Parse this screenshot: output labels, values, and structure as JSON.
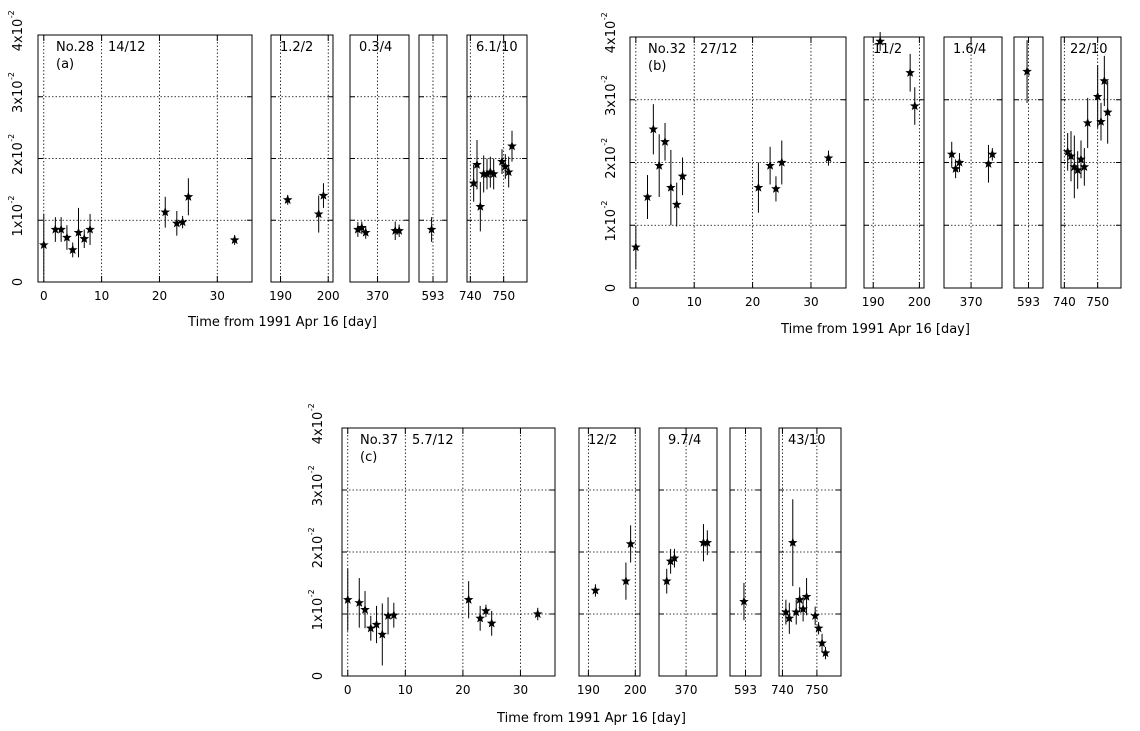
{
  "chart_data": [
    {
      "type": "scatter",
      "panel": "(a)",
      "source": "No.28",
      "xlabel": "Time from 1991 Apr 16 [day]",
      "ylim": [
        0,
        0.04
      ],
      "yticks": [
        "0",
        "1x10",
        "2x10",
        "3x10",
        "4x10"
      ],
      "ytick_exponent": "-2",
      "segments": [
        {
          "label": "14/12",
          "xlim": [
            -1,
            36
          ],
          "xticks": [
            "0",
            "10",
            "20",
            "30"
          ],
          "xtick_values": [
            0,
            10,
            20,
            30
          ],
          "points": [
            {
              "x": 0,
              "y": 0.006,
              "err": 0.005
            },
            {
              "x": 2,
              "y": 0.0085,
              "err": 0.002
            },
            {
              "x": 3,
              "y": 0.0085,
              "err": 0.002
            },
            {
              "x": 4,
              "y": 0.0072,
              "err": 0.002
            },
            {
              "x": 5,
              "y": 0.0052,
              "err": 0.0012
            },
            {
              "x": 6,
              "y": 0.008,
              "err": 0.004
            },
            {
              "x": 7,
              "y": 0.007,
              "err": 0.0015
            },
            {
              "x": 8,
              "y": 0.0085,
              "err": 0.0025
            },
            {
              "x": 21,
              "y": 0.0113,
              "err": 0.0025
            },
            {
              "x": 23,
              "y": 0.0095,
              "err": 0.002
            },
            {
              "x": 24,
              "y": 0.0097,
              "err": 0.001
            },
            {
              "x": 25,
              "y": 0.0138,
              "err": 0.003
            },
            {
              "x": 33,
              "y": 0.0068,
              "err": 0.0008
            }
          ]
        },
        {
          "label": "1.2/2",
          "xlim": [
            188,
            201
          ],
          "xticks": [
            "190",
            "200"
          ],
          "xtick_values": [
            190,
            200
          ],
          "points": [
            {
              "x": 191.5,
              "y": 0.0133,
              "err": 0.0008
            },
            {
              "x": 198,
              "y": 0.011,
              "err": 0.003
            },
            {
              "x": 199,
              "y": 0.014,
              "err": 0.002
            }
          ]
        },
        {
          "label": "0.3/4",
          "xlim": [
            363,
            378
          ],
          "xticks": [
            "370"
          ],
          "xtick_values": [
            370
          ],
          "points": [
            {
              "x": 365,
              "y": 0.0085,
              "err": 0.0012
            },
            {
              "x": 366,
              "y": 0.0088,
              "err": 0.001
            },
            {
              "x": 367,
              "y": 0.008,
              "err": 0.001
            },
            {
              "x": 374.5,
              "y": 0.0083,
              "err": 0.0015
            },
            {
              "x": 375.5,
              "y": 0.0083,
              "err": 0.001
            }
          ]
        },
        {
          "label": "",
          "xlim": [
            591,
            595
          ],
          "xticks": [
            "593"
          ],
          "xtick_values": [
            593
          ],
          "points": [
            {
              "x": 592.8,
              "y": 0.0085,
              "err": 0.002
            }
          ]
        },
        {
          "label": "6.1/10",
          "xlim": [
            739,
            757
          ],
          "xticks": [
            "740",
            "750"
          ],
          "xtick_values": [
            740,
            750
          ],
          "points": [
            {
              "x": 741,
              "y": 0.016,
              "err": 0.003
            },
            {
              "x": 742,
              "y": 0.019,
              "err": 0.004
            },
            {
              "x": 743,
              "y": 0.0122,
              "err": 0.004
            },
            {
              "x": 744,
              "y": 0.0175,
              "err": 0.003
            },
            {
              "x": 745,
              "y": 0.0175,
              "err": 0.0025
            },
            {
              "x": 746,
              "y": 0.0178,
              "err": 0.0025
            },
            {
              "x": 747,
              "y": 0.0175,
              "err": 0.0025
            },
            {
              "x": 749.5,
              "y": 0.0195,
              "err": 0.002
            },
            {
              "x": 750.5,
              "y": 0.0187,
              "err": 0.002
            },
            {
              "x": 751.5,
              "y": 0.0178,
              "err": 0.0025
            },
            {
              "x": 752.5,
              "y": 0.022,
              "err": 0.0025
            }
          ]
        }
      ]
    },
    {
      "type": "scatter",
      "panel": "(b)",
      "source": "No.32",
      "xlabel": "Time from 1991 Apr 16 [day]",
      "ylim": [
        0,
        0.04
      ],
      "yticks": [
        "0",
        "1x10",
        "2x10",
        "3x10",
        "4x10"
      ],
      "ytick_exponent": "-2",
      "segments": [
        {
          "label": "27/12",
          "xlim": [
            -1,
            36
          ],
          "xticks": [
            "0",
            "10",
            "20",
            "30"
          ],
          "xtick_values": [
            0,
            10,
            20,
            30
          ],
          "points": [
            {
              "x": 0,
              "y": 0.0065,
              "err": 0.0035
            },
            {
              "x": 2,
              "y": 0.0145,
              "err": 0.0035
            },
            {
              "x": 3,
              "y": 0.0253,
              "err": 0.004
            },
            {
              "x": 4,
              "y": 0.0195,
              "err": 0.005
            },
            {
              "x": 5,
              "y": 0.0233,
              "err": 0.003
            },
            {
              "x": 6,
              "y": 0.016,
              "err": 0.006
            },
            {
              "x": 7,
              "y": 0.0133,
              "err": 0.0035
            },
            {
              "x": 8,
              "y": 0.0178,
              "err": 0.003
            },
            {
              "x": 21,
              "y": 0.016,
              "err": 0.004
            },
            {
              "x": 23,
              "y": 0.0195,
              "err": 0.003
            },
            {
              "x": 24,
              "y": 0.0158,
              "err": 0.002
            },
            {
              "x": 25,
              "y": 0.02,
              "err": 0.0035
            },
            {
              "x": 33,
              "y": 0.0207,
              "err": 0.0012
            }
          ]
        },
        {
          "label": "11/2",
          "xlim": [
            188,
            201
          ],
          "xticks": [
            "190",
            "200"
          ],
          "xtick_values": [
            190,
            200
          ],
          "points": [
            {
              "x": 191.5,
              "y": 0.0393,
              "err": 0.0015
            },
            {
              "x": 198,
              "y": 0.0343,
              "err": 0.003
            },
            {
              "x": 199,
              "y": 0.029,
              "err": 0.003
            }
          ]
        },
        {
          "label": "1.6/4",
          "xlim": [
            363,
            378
          ],
          "xticks": [
            "370"
          ],
          "xtick_values": [
            370
          ],
          "points": [
            {
              "x": 365,
              "y": 0.0213,
              "err": 0.002
            },
            {
              "x": 366,
              "y": 0.019,
              "err": 0.0015
            },
            {
              "x": 367,
              "y": 0.02,
              "err": 0.0015
            },
            {
              "x": 374.5,
              "y": 0.0198,
              "err": 0.003
            },
            {
              "x": 375.5,
              "y": 0.0213,
              "err": 0.001
            }
          ]
        },
        {
          "label": "",
          "xlim": [
            591,
            595
          ],
          "xticks": [
            "593"
          ],
          "xtick_values": [
            593
          ],
          "points": [
            {
              "x": 592.8,
              "y": 0.0345,
              "err": 0.005
            }
          ]
        },
        {
          "label": "22/10",
          "xlim": [
            739,
            757
          ],
          "xticks": [
            "740",
            "750"
          ],
          "xtick_values": [
            740,
            750
          ],
          "points": [
            {
              "x": 741,
              "y": 0.0217,
              "err": 0.003
            },
            {
              "x": 742,
              "y": 0.021,
              "err": 0.004
            },
            {
              "x": 743,
              "y": 0.0193,
              "err": 0.005
            },
            {
              "x": 744,
              "y": 0.0188,
              "err": 0.003
            },
            {
              "x": 745,
              "y": 0.0205,
              "err": 0.003
            },
            {
              "x": 746,
              "y": 0.0193,
              "err": 0.003
            },
            {
              "x": 747,
              "y": 0.0263,
              "err": 0.004
            },
            {
              "x": 750,
              "y": 0.0305,
              "err": 0.005
            },
            {
              "x": 751,
              "y": 0.0265,
              "err": 0.003
            },
            {
              "x": 752,
              "y": 0.033,
              "err": 0.004
            },
            {
              "x": 753,
              "y": 0.028,
              "err": 0.005
            }
          ]
        }
      ]
    },
    {
      "type": "scatter",
      "panel": "(c)",
      "source": "No.37",
      "xlabel": "Time from 1991 Apr 16 [day]",
      "ylim": [
        0,
        0.04
      ],
      "yticks": [
        "0",
        "1x10",
        "2x10",
        "3x10",
        "4x10"
      ],
      "ytick_exponent": "-2",
      "segments": [
        {
          "label": "5.7/12",
          "xlim": [
            -1,
            36
          ],
          "xticks": [
            "0",
            "10",
            "20",
            "30"
          ],
          "xtick_values": [
            0,
            10,
            20,
            30
          ],
          "points": [
            {
              "x": 0,
              "y": 0.0123,
              "err": 0.005
            },
            {
              "x": 2,
              "y": 0.0118,
              "err": 0.004
            },
            {
              "x": 3,
              "y": 0.0107,
              "err": 0.003
            },
            {
              "x": 4,
              "y": 0.0077,
              "err": 0.002
            },
            {
              "x": 5,
              "y": 0.0083,
              "err": 0.003
            },
            {
              "x": 6,
              "y": 0.0067,
              "err": 0.005
            },
            {
              "x": 7,
              "y": 0.0097,
              "err": 0.003
            },
            {
              "x": 8,
              "y": 0.0098,
              "err": 0.002
            },
            {
              "x": 21,
              "y": 0.0123,
              "err": 0.003
            },
            {
              "x": 23,
              "y": 0.0093,
              "err": 0.002
            },
            {
              "x": 24,
              "y": 0.0105,
              "err": 0.001
            },
            {
              "x": 25,
              "y": 0.0085,
              "err": 0.002
            },
            {
              "x": 33,
              "y": 0.01,
              "err": 0.001
            }
          ]
        },
        {
          "label": "12/2",
          "xlim": [
            188,
            201
          ],
          "xticks": [
            "190",
            "200"
          ],
          "xtick_values": [
            190,
            200
          ],
          "points": [
            {
              "x": 191.5,
              "y": 0.0138,
              "err": 0.001
            },
            {
              "x": 198,
              "y": 0.0153,
              "err": 0.003
            },
            {
              "x": 199,
              "y": 0.0213,
              "err": 0.003
            }
          ]
        },
        {
          "label": "9.7/4",
          "xlim": [
            363,
            378
          ],
          "xticks": [
            "370"
          ],
          "xtick_values": [
            370
          ],
          "points": [
            {
              "x": 365,
              "y": 0.0153,
              "err": 0.002
            },
            {
              "x": 366,
              "y": 0.0185,
              "err": 0.002
            },
            {
              "x": 367,
              "y": 0.019,
              "err": 0.0015
            },
            {
              "x": 374.5,
              "y": 0.0215,
              "err": 0.003
            },
            {
              "x": 375.5,
              "y": 0.0215,
              "err": 0.002
            }
          ]
        },
        {
          "label": "",
          "xlim": [
            591,
            595
          ],
          "xticks": [
            "593"
          ],
          "xtick_values": [
            593
          ],
          "points": [
            {
              "x": 592.8,
              "y": 0.012,
              "err": 0.003
            }
          ]
        },
        {
          "label": "43/10",
          "xlim": [
            739,
            757
          ],
          "xticks": [
            "740",
            "750"
          ],
          "xtick_values": [
            740,
            750
          ],
          "points": [
            {
              "x": 741,
              "y": 0.0103,
              "err": 0.002
            },
            {
              "x": 742,
              "y": 0.0093,
              "err": 0.0025
            },
            {
              "x": 743,
              "y": 0.0215,
              "err": 0.007
            },
            {
              "x": 744,
              "y": 0.0103,
              "err": 0.002
            },
            {
              "x": 745,
              "y": 0.0123,
              "err": 0.002
            },
            {
              "x": 746,
              "y": 0.0108,
              "err": 0.002
            },
            {
              "x": 747,
              "y": 0.0128,
              "err": 0.003
            },
            {
              "x": 749.5,
              "y": 0.0097,
              "err": 0.0015
            },
            {
              "x": 750.5,
              "y": 0.0077,
              "err": 0.001
            },
            {
              "x": 751.5,
              "y": 0.0053,
              "err": 0.0015
            },
            {
              "x": 752.5,
              "y": 0.0037,
              "err": 0.001
            }
          ]
        }
      ]
    }
  ]
}
